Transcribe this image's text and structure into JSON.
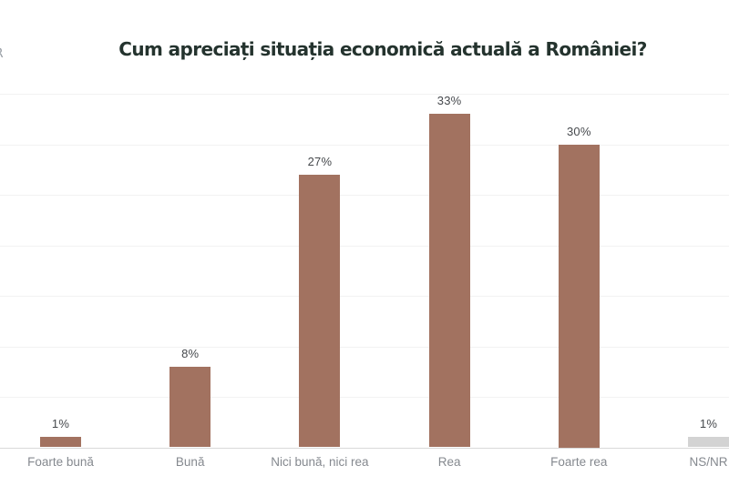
{
  "page": {
    "background": "#ffffff"
  },
  "header": {
    "partial_logo_text": "R",
    "title": "Cum apreciați situația economică actuală a României?",
    "title_color": "#24332e"
  },
  "chart_data": {
    "type": "bar",
    "title": "Cum apreciați situația economică actuală a României?",
    "categories": [
      "Foarte bună",
      "Bună",
      "Nici bună, nici rea",
      "Rea",
      "Foarte rea",
      "NS/NR"
    ],
    "values": [
      1,
      8,
      27,
      33,
      30,
      1
    ],
    "value_labels": [
      "1%",
      "8%",
      "27%",
      "33%",
      "30%",
      "1%"
    ],
    "bar_colors": [
      "#a27260",
      "#a27260",
      "#a27260",
      "#a27260",
      "#a27260",
      "#d3d3d3"
    ],
    "xlabel": "",
    "ylabel": "",
    "ylim": [
      0,
      36
    ],
    "gridline_step_percent": 5,
    "gridline_max_percent": 35,
    "grid": true,
    "legend_position": "none"
  }
}
